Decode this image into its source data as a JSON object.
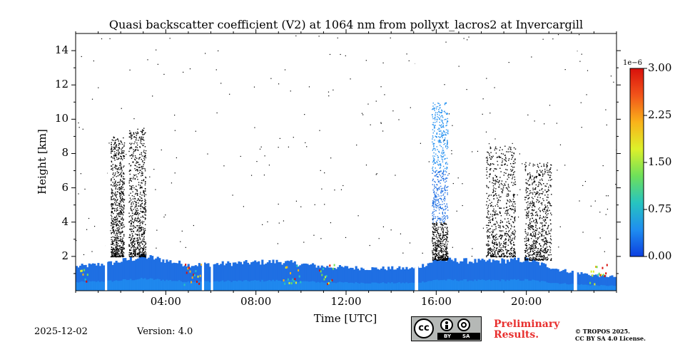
{
  "chart_data": {
    "type": "heatmap",
    "title": "Quasi backscatter coefficient (V2) at 1064 nm from pollyxt_lacros2 at Invercargill",
    "xlabel": "Time [UTC]",
    "ylabel": "Height [km]",
    "xlim": [
      0,
      24
    ],
    "ylim": [
      0,
      15
    ],
    "x_ticks": [
      4,
      8,
      12,
      16,
      20
    ],
    "x_tick_labels": [
      "04:00",
      "08:00",
      "12:00",
      "16:00",
      "20:00"
    ],
    "y_ticks": [
      2,
      4,
      6,
      8,
      10,
      12,
      14
    ],
    "y_tick_labels": [
      "2",
      "4",
      "6",
      "8",
      "10",
      "12",
      "14"
    ],
    "colorbar": {
      "min": 0,
      "max": 3.0,
      "ticks": [
        0,
        0.75,
        1.5,
        2.25,
        3.0
      ],
      "tick_labels": [
        "0.00",
        "0.75",
        "1.50",
        "2.25",
        "3.00"
      ],
      "scale_label": "1e−6",
      "colors": [
        "#0c3fe0",
        "#1f8ef0",
        "#27c4c0",
        "#6ee05a",
        "#ddf12a",
        "#f9b21a",
        "#f2541a",
        "#d8100c"
      ]
    },
    "boundary_layer_top_km": [
      {
        "t": 0.0,
        "h": 1.4
      },
      {
        "t": 1.5,
        "h": 1.6
      },
      {
        "t": 3.0,
        "h": 2.0
      },
      {
        "t": 5.0,
        "h": 1.5
      },
      {
        "t": 7.0,
        "h": 1.6
      },
      {
        "t": 9.0,
        "h": 1.7
      },
      {
        "t": 11.0,
        "h": 1.4
      },
      {
        "t": 13.0,
        "h": 1.3
      },
      {
        "t": 15.0,
        "h": 1.3
      },
      {
        "t": 16.0,
        "h": 1.8
      },
      {
        "t": 18.0,
        "h": 1.7
      },
      {
        "t": 20.0,
        "h": 1.8
      },
      {
        "t": 21.5,
        "h": 1.2
      },
      {
        "t": 23.0,
        "h": 0.9
      },
      {
        "t": 24.0,
        "h": 0.8
      }
    ],
    "gaps_utc": [
      [
        1.3,
        1.4
      ],
      [
        5.6,
        5.7
      ],
      [
        6.0,
        6.1
      ],
      [
        15.05,
        15.2
      ],
      [
        22.1,
        22.25
      ]
    ],
    "cloud_columns": [
      {
        "t0": 1.55,
        "t1": 2.15,
        "base_km": 2.0,
        "top_km": 9.0,
        "color": "black"
      },
      {
        "t0": 2.35,
        "t1": 3.1,
        "base_km": 2.0,
        "top_km": 9.5,
        "color": "black"
      },
      {
        "t0": 15.8,
        "t1": 16.5,
        "base_km": 1.8,
        "top_km": 11.0,
        "color": "blue"
      },
      {
        "t0": 18.2,
        "t1": 19.5,
        "base_km": 2.0,
        "top_km": 8.5,
        "color": "black"
      },
      {
        "t0": 19.9,
        "t1": 21.1,
        "base_km": 1.8,
        "top_km": 7.5,
        "color": "black"
      }
    ]
  },
  "footer": {
    "date": "2025-12-02",
    "version": "Version: 4.0",
    "preliminary_line1": "Preliminary",
    "preliminary_line2": "Results.",
    "copyright_line1": "© TROPOS 2025.",
    "copyright_line2": "CC BY SA 4.0 License.",
    "cc_badge": "cc",
    "cc_by": "BY",
    "cc_sa": "SA"
  }
}
